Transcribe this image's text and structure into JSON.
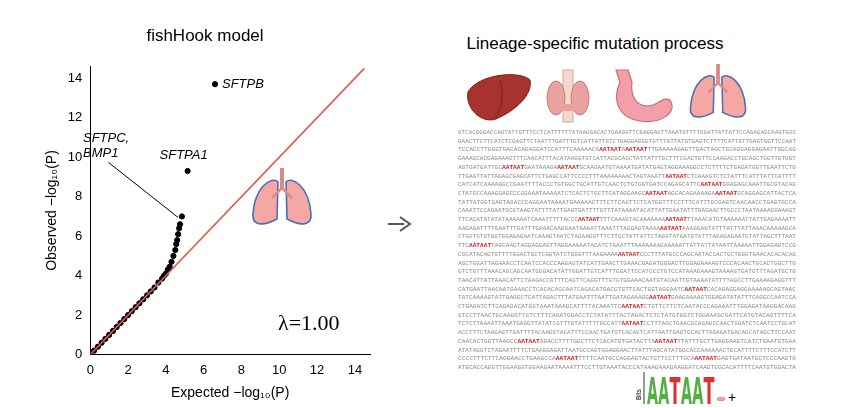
{
  "chart_data": {
    "type": "scatter",
    "title": "fishHook model",
    "x_label": "Expected −log₁₀(P)",
    "y_label": "Observed −log₁₀(P)",
    "xlim": [
      0,
      14.8
    ],
    "ylim": [
      0,
      14.6
    ],
    "xticks": [
      0,
      2,
      4,
      6,
      8,
      10,
      12,
      14
    ],
    "yticks": [
      0,
      2,
      4,
      6,
      8,
      10,
      12,
      14
    ],
    "grid": false,
    "legend": "none",
    "series": [
      {
        "color": "#000000",
        "marker": "circle",
        "x": [
          0,
          0.2,
          0.4,
          0.6,
          0.8,
          1.0,
          1.2,
          1.4,
          1.6,
          1.8,
          2.0,
          2.2,
          2.4,
          2.6,
          2.8,
          3.0,
          3.2,
          3.4,
          3.6,
          3.8,
          3.9,
          4.0,
          4.1,
          4.2,
          4.3,
          4.4,
          4.5,
          4.55,
          4.6,
          4.65,
          4.7,
          4.75,
          4.85,
          5.15,
          6.6
        ],
        "values": [
          0,
          0.2,
          0.4,
          0.6,
          0.8,
          1.0,
          1.2,
          1.4,
          1.6,
          1.8,
          2.0,
          2.2,
          2.4,
          2.6,
          2.8,
          3.0,
          3.2,
          3.4,
          3.65,
          3.85,
          4.0,
          4.1,
          4.3,
          4.45,
          4.7,
          5.0,
          5.3,
          5.6,
          5.8,
          6.1,
          6.4,
          6.6,
          7.0,
          9.3,
          13.7
        ]
      },
      {
        "type": "line",
        "color": "#e05a4f",
        "line_style": "solid",
        "x": [
          0,
          14.5
        ],
        "values": [
          0,
          14.5
        ]
      }
    ],
    "annotations": [
      {
        "text": [
          "SFTPB"
        ],
        "x": 6.6,
        "y": 13.7
      },
      {
        "text": [
          "SFTPA1"
        ],
        "x": 5.15,
        "y": 9.3
      },
      {
        "text": [
          "SFTPC,",
          "BMP1"
        ],
        "x": 4.8,
        "y": 6.8
      }
    ],
    "note": "λ=1.00"
  },
  "diagram": {
    "title": "Lineage-specific mutation process",
    "sequence_lines": [
      "GTCACGGGACCAGTATTGTTTCCTCATTTTTTATAAGGACACTGAAGGTTCGAGGAGTTAAATGTTTTGGATTATTATTCCAGAGAGCAAGTGGC",
      "GAACTTCTTCATCTCGAGTTCTAATTTGATTTGTCATTATTGTCTGAGGAGGGTGTTTATTATGTGAGTCTTTTCATTGTTGAGTGGTTCCAAT",
      "TCCACCTTGGGTGACACAGAGGATCCATTTCAAAAACAAATAATAAATAATTTGAAAAAGAGTTGACTAGCTGCAGGAGGAGAATTGGCAG",
      "GAAAGCACGAGAAAGTTTCAACATTTACATAAGGTGTCATTACGCAGCTATTATTTGCTTTCGACTGTTCCAAGACCTGCAGCTGGTTGTGGT",
      "AGTGATGATTGCAATAATGAATAAAGAAATAATGCAAGAATGTAAAATGATATGAGTAGGAAAGGCCTCTTTTCTGAGATGGTTGAATTCTG",
      "TTGAATTATTAGAGCGAGCATTCTGAGCCATTCCCCTTTAAAAAAAACTAGTAAATTAATAATCTCAAAGTCTCTATTTCATTTATTCATTTT",
      "CATCATCAAAAGGCCGAATTTTACCCTGTGGCTGCATTGTCAACTCTGTGGTGATCCAGAGCATTCAATAATGGAGAGCAAATTGCGTACAG",
      "CTATGCCAAAGGAGCCCGGAAATAAAAATCTCACTCTGCTTCATAGGAAGCAATAATAGCACAGAAAAGAAATAATGCAGGAGCATTACTCA",
      "TATTATGGTGAGTAGACCCAGGAATAAAATGAAAAACTTTCTTCAGTTCTCATGGTTTCCTTTCATTTGCGAGTCAACAACCTGAGTGCCA",
      "CAAATTCCAGAATGCGTAAGTATTTTATTGAGTGATTTTGTTTATAAAATACATTATTGAATATTTGAGAACTTGCCCTAATAAAAGGAAAGT",
      "TTCACATATATATAAAAAATCAAATTTTTACCCAATAATTTTCAAAGTACAAAAAAAAATAATTTAAACATGTAAAAAATTATTGAGAAAATT",
      "AAGAGATTTTGAATTTGATTTGAAACAAGGAATAAAATTAAATTTAGGAGTAAAAAATAATAAAGGAGTATTTATTTATTAAACAAAAAGCA",
      "CTGGTGTGTGGTGGAGAGAATCAAAGTAATCTAGAAGGTTTCTTGCTATTATTCTAGGTATGATGTATTTAGAGAGAATGTATTAGCTTTAAT",
      "TTCAATAATTAGCAAGTAGGAGGAGTTAGGAAAAATACATCTAAATTTAAAAAAAGAAAAATTATTATTATAATTAAAAATTGGAGAGTCCG",
      "CGCATACAGTGTTTTGGACTGCTCGGTATCTGGGTTTAAGAAAAAATAATCCCTTTATGCCCAGCAATACCACTGCTGGGTGAACACACACAG",
      "AGCTGGATTAGAAACCTCAATCCACCCAAGAGTATCATTGAACTTGAAACGAGATGGGACTTGGAGAAAAGTCCCACAACTGCACTGGCTTG",
      "GTCTGTTTAAACAGCAGCAATGGGACATATTGGATTGTCATTTGGATTCCATCCCTGTCCATAAAGAAAGTAAAAGTGATGTTTAGATGCTG",
      "TAACATTATTAAACATTCTAAGACCATTTCAGTTCAGGTTTGTGTGGAAACAATGTACAATTGTAAAATATTTTAGCCTTGAAAAGAGGTTT",
      "CATGAATTAACAATGAAACCTCACACAGCAATCAGACATGACGTGTTCACTGGTAGGAATCAATAATCACAGAGGAGGAAAAAGCAGTAAC",
      "TATCAAAAGTATTGAGGCTCATTAGACTTTATGAATTTAATTGATAGAAAGGAATAATGAAGAAAAGTGGAGATATATTTCAGGCCAATCCA",
      "CTGAGATCTTCAGAGACATGGTAAATAAAGCATTTTACAAATTCAATAATCTGTTCTTCTCAATACCCAGAAATTTGGAGATAAGGACAAG",
      "GTCCTTAACTGCAAGGTTGTCTTTCAGATGGACCTCTATATTTACTAGACTCTCTATGTGGTCTGGAAAGCGATTCATGTACAGTTTTCA",
      "TCTCTTAAAATTAAATGAGGTTATATCGTTTGTATTTTTGCCATTAATAATCCTTTAGCTGAACGCAGAGCCAACTGGATCTCAATCCTGCAT",
      "ACCTTTCTAAGAGTTGATTTTACAAGGTACATTTCCAACTGATGTCACAGTCATTAATTGAGTGCACTTAGAGATGACAGCATAGCTTCCAAT",
      "CAACACTGGTTAAGCCAATAATAGACCTTTTGGCTTCTCACATGTGATACTTAAATAATTTATTTGCTTGAGGAAGTCATCTGAATGTGAA",
      "ATATAGGTCTAGAATTTTCTGAAGGAGATTAATGCCAGTGGAGGAACTTATTTAGCATATGGCACCAAAAAACTGCATTTTCTTTCCATCTT",
      "CCCCTTTCTTCAGGAACCTGAAGCCAAATAATTTTTCAATGCCAGGAGTACTGTTCCTTTGCAAATAATGAGTGATAATGCTCCCAAGTG",
      "ATGCACCAGGTTGGAAGGTGGAAGAATAAAATTTCCTTGTAAATACCCATAAAGAAAGAAGGATCAAGTGGCACATTTTCAATGTGGACTA"
    ],
    "motif": "AATAAT",
    "logo_axis_label": "Bits",
    "logo_suffix": "+"
  }
}
